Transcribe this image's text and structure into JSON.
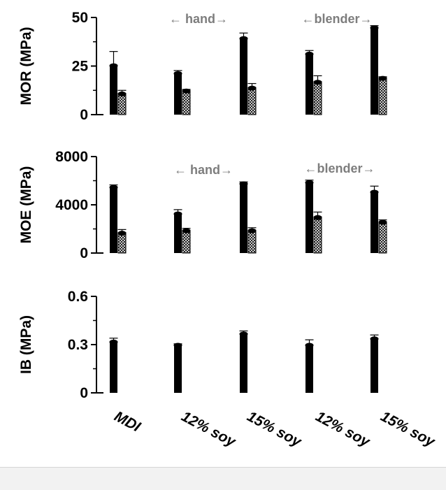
{
  "chart_data": [
    {
      "type": "bar",
      "id": "mor",
      "ylabel": "MOR (MPa)",
      "ylim": [
        0,
        50
      ],
      "yticks": [
        0,
        25,
        50
      ],
      "categories": [
        "MDI",
        "12% soy",
        "15% soy",
        "12% soy",
        "15% soy"
      ],
      "series": [
        {
          "values": [
            25.5,
            21.5,
            39.5,
            31.5,
            45.0
          ],
          "errors": [
            7.0,
            1.2,
            2.5,
            1.5,
            0.8
          ],
          "color": "#000000",
          "pattern": "solid"
        },
        {
          "values": [
            11.0,
            12.5,
            14.0,
            17.0,
            19.0
          ],
          "errors": [
            1.5,
            0.5,
            2.0,
            3.0,
            0.5
          ],
          "color": "#ffffff",
          "pattern": "crosshatch"
        }
      ],
      "annotations": [
        {
          "text": "← hand→",
          "group": [
            1,
            2
          ]
        },
        {
          "text": "←blender→",
          "group": [
            3,
            4
          ]
        }
      ]
    },
    {
      "type": "bar",
      "id": "moe",
      "ylabel": "MOE (MPa)",
      "ylim": [
        0,
        8000
      ],
      "yticks": [
        0,
        4000,
        8000
      ],
      "categories": [
        "MDI",
        "12% soy",
        "15% soy",
        "12% soy",
        "15% soy"
      ],
      "series": [
        {
          "values": [
            5500,
            3300,
            5800,
            5900,
            5100
          ],
          "errors": [
            150,
            300,
            100,
            150,
            450
          ],
          "color": "#000000",
          "pattern": "solid"
        },
        {
          "values": [
            1700,
            1900,
            1900,
            3000,
            2600
          ],
          "errors": [
            250,
            150,
            200,
            400,
            150
          ],
          "color": "#ffffff",
          "pattern": "crosshatch"
        }
      ],
      "annotations": [
        {
          "text": "← hand→",
          "group": [
            1,
            2
          ]
        },
        {
          "text": "←blender→",
          "group": [
            3,
            4
          ]
        }
      ]
    },
    {
      "type": "bar",
      "id": "ib",
      "ylabel": "IB (MPa)",
      "ylim": [
        0,
        0.6
      ],
      "yticks": [
        "0",
        "0.3",
        "0.6"
      ],
      "categories": [
        "MDI",
        "12% soy",
        "15% soy",
        "12% soy",
        "15% soy"
      ],
      "series": [
        {
          "values": [
            0.32,
            0.3,
            0.37,
            0.3,
            0.34
          ],
          "errors": [
            0.02,
            0.005,
            0.015,
            0.03,
            0.02
          ],
          "color": "#000000",
          "pattern": "solid"
        }
      ],
      "annotations": []
    }
  ]
}
